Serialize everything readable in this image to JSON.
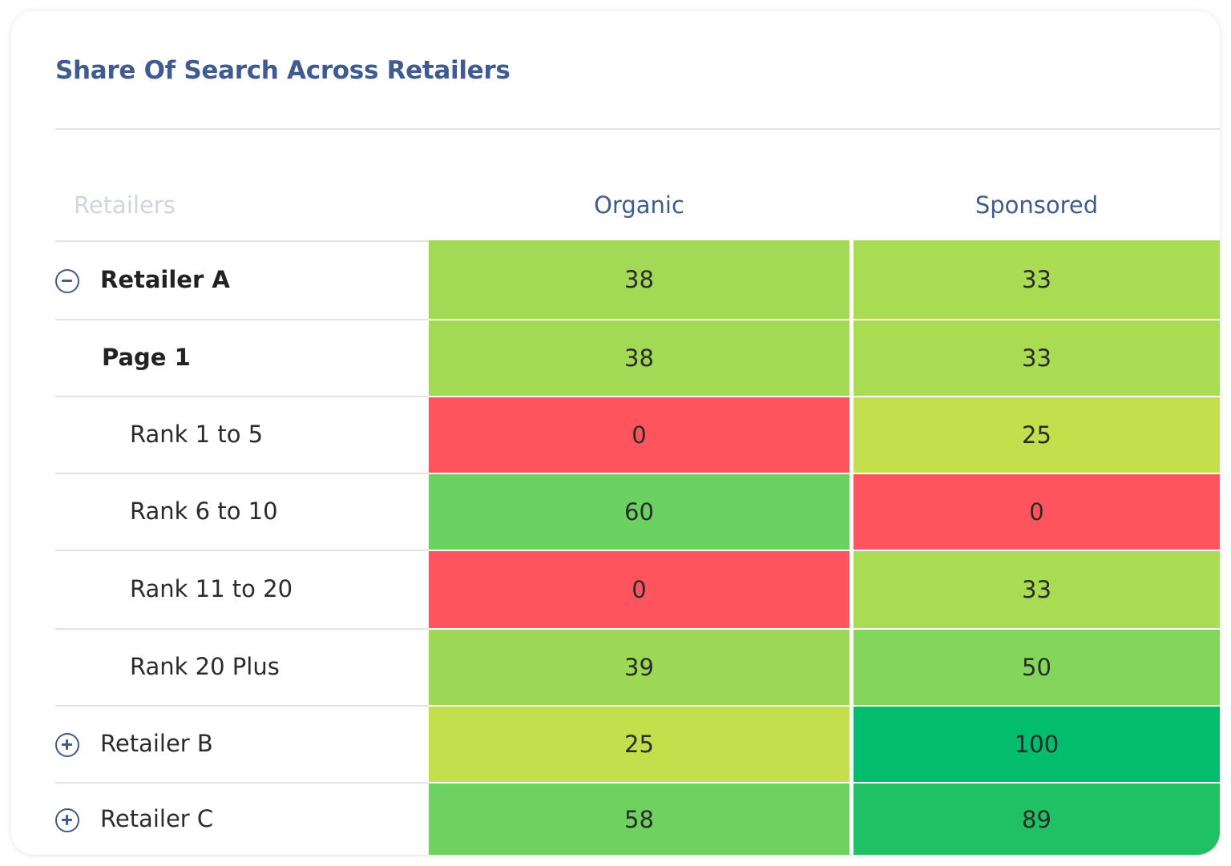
{
  "title": "Share Of Search Across Retailers",
  "columns": {
    "retailers": "Retailers",
    "organic": "Organic",
    "sponsored": "Sponsored"
  },
  "rows": [
    {
      "label": "Retailer A",
      "level": 0,
      "toggle": "collapse",
      "bold": true,
      "organic": "38",
      "sponsored": "33",
      "organic_color": "#a2da55",
      "sponsored_color": "#a9db53"
    },
    {
      "label": "Page 1",
      "level": 1,
      "toggle": "none",
      "bold": true,
      "organic": "38",
      "sponsored": "33",
      "organic_color": "#a2da55",
      "sponsored_color": "#a9db53"
    },
    {
      "label": "Rank 1 to 5",
      "level": 2,
      "toggle": "none",
      "bold": false,
      "organic": "0",
      "sponsored": "25",
      "organic_color": "#fe545d",
      "sponsored_color": "#c4df4c"
    },
    {
      "label": "Rank 6 to 10",
      "level": 2,
      "toggle": "none",
      "bold": false,
      "organic": "60",
      "sponsored": "0",
      "organic_color": "#6bd160",
      "sponsored_color": "#fe545d"
    },
    {
      "label": "Rank 11 to 20",
      "level": 2,
      "toggle": "none",
      "bold": false,
      "organic": "0",
      "sponsored": "33",
      "organic_color": "#fe545d",
      "sponsored_color": "#a9db53"
    },
    {
      "label": "Rank 20 Plus",
      "level": 2,
      "toggle": "none",
      "bold": false,
      "organic": "39",
      "sponsored": "50",
      "organic_color": "#9ed857",
      "sponsored_color": "#84d55b"
    },
    {
      "label": "Retailer B",
      "level": 0,
      "toggle": "expand",
      "bold": false,
      "organic": "25",
      "sponsored": "100",
      "organic_color": "#c4df4c",
      "sponsored_color": "#03bc6d"
    },
    {
      "label": "Retailer C",
      "level": 0,
      "toggle": "expand",
      "bold": false,
      "organic": "58",
      "sponsored": "89",
      "organic_color": "#6ed160",
      "sponsored_color": "#20c165"
    }
  ],
  "chart_data": {
    "type": "heatmap",
    "title": "Share Of Search Across Retailers",
    "x": [
      "Organic",
      "Sponsored"
    ],
    "y": [
      "Retailer A",
      "Page 1",
      "Rank 1 to 5",
      "Rank 6 to 10",
      "Rank 11 to 20",
      "Rank 20 Plus",
      "Retailer B",
      "Retailer C"
    ],
    "values": [
      [
        38,
        33
      ],
      [
        38,
        33
      ],
      [
        0,
        25
      ],
      [
        60,
        0
      ],
      [
        0,
        33
      ],
      [
        39,
        50
      ],
      [
        25,
        100
      ],
      [
        58,
        89
      ]
    ],
    "colors": {
      "low": "#fe545d",
      "mid": "#c4df4c",
      "high": "#03bc6d"
    }
  }
}
